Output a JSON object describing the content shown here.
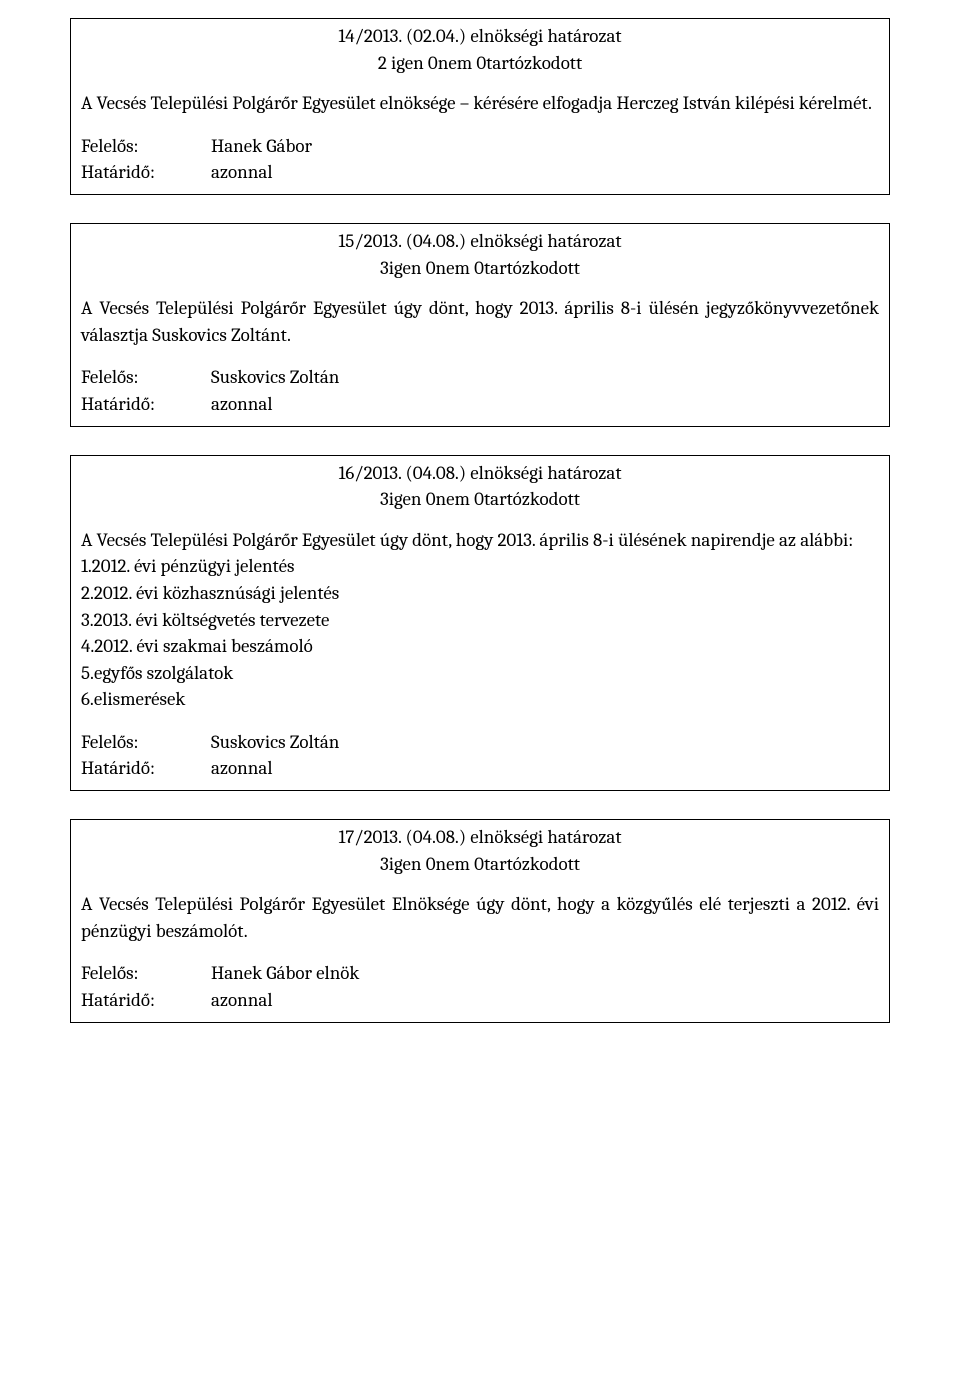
{
  "box1": {
    "title": "14/2013. (02.04.) elnökségi határozat",
    "votes": "2 igen  0nem  0tartózkodott",
    "body": "A Vecsés Települési Polgárőr Egyesület elnöksége – kérésére elfogadja Herczeg István kilépési kérelmét.",
    "felelos_label": "Felelős:",
    "felelos_value": "Hanek Gábor",
    "hatarido_label": "Határidő:",
    "hatarido_value": "azonnal"
  },
  "box2": {
    "title": "15/2013. (04.08.) elnökségi határozat",
    "votes": "3igen  0nem  0tartózkodott",
    "body": "A Vecsés Települési Polgárőr Egyesület úgy dönt, hogy 2013. április 8-i ülésén jegyzőkönyvvezetőnek választja Suskovics Zoltánt.",
    "felelos_label": "Felelős:",
    "felelos_value": "Suskovics Zoltán",
    "hatarido_label": "Határidő:",
    "hatarido_value": "azonnal"
  },
  "box3": {
    "title": "16/2013. (04.08.) elnökségi határozat",
    "votes": "3igen  0nem  0tartózkodott",
    "body": "A Vecsés Települési Polgárőr Egyesület úgy dönt, hogy 2013. április 8-i ülésének napirendje az alábbi:",
    "list": {
      "i1": "1.2012. évi pénzügyi jelentés",
      "i2": "2.2012. évi közhasznúsági jelentés",
      "i3": "3.2013. évi költségvetés tervezete",
      "i4": "4.2012. évi szakmai beszámoló",
      "i5": "5.egyfős szolgálatok",
      "i6": "6.elismerések"
    },
    "felelos_label": "Felelős:",
    "felelos_value": "Suskovics Zoltán",
    "hatarido_label": "Határidő:",
    "hatarido_value": "azonnal"
  },
  "box4": {
    "title": "17/2013. (04.08.) elnökségi határozat",
    "votes": "3igen  0nem  0tartózkodott",
    "body": "A Vecsés Települési Polgárőr Egyesület Elnöksége úgy dönt, hogy a közgyűlés elé terjeszti a 2012. évi pénzügyi beszámolót.",
    "felelos_label": "Felelős:",
    "felelos_value": "Hanek Gábor elnök",
    "hatarido_label": "Határidő:",
    "hatarido_value": "azonnal"
  }
}
